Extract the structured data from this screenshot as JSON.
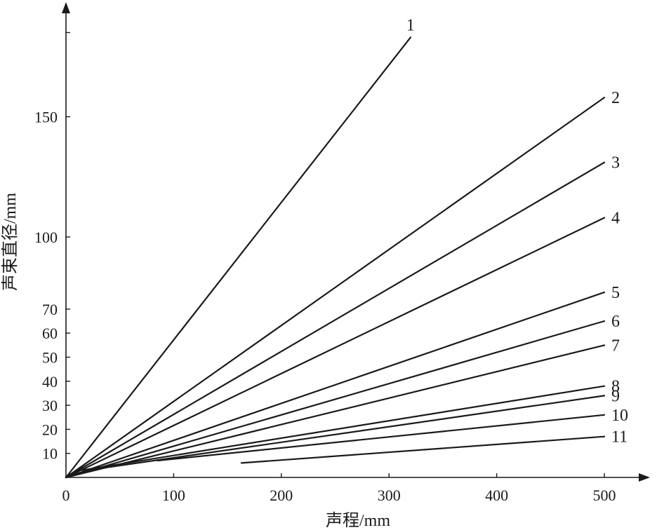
{
  "chart_data": {
    "type": "line",
    "xlabel": "声程/mm",
    "ylabel": "声束直径/mm",
    "xlim": [
      0,
      500
    ],
    "ylim": [
      0,
      185
    ],
    "x_ticks": [
      0,
      100,
      200,
      300,
      400,
      500
    ],
    "y_ticks": [
      10,
      20,
      30,
      40,
      50,
      60,
      70,
      100,
      150
    ],
    "grid": false,
    "series": [
      {
        "name": "1",
        "x": [
          0,
          320
        ],
        "y": [
          0,
          183
        ]
      },
      {
        "name": "2",
        "x": [
          0,
          500
        ],
        "y": [
          0,
          158
        ]
      },
      {
        "name": "3",
        "x": [
          0,
          500
        ],
        "y": [
          0,
          131
        ]
      },
      {
        "name": "4",
        "x": [
          0,
          500
        ],
        "y": [
          0,
          108
        ]
      },
      {
        "name": "5",
        "x": [
          0,
          500
        ],
        "y": [
          0,
          77
        ]
      },
      {
        "name": "6",
        "x": [
          0,
          500
        ],
        "y": [
          0,
          65
        ]
      },
      {
        "name": "7",
        "x": [
          0,
          500
        ],
        "y": [
          0,
          55
        ]
      },
      {
        "name": "8",
        "x": [
          15,
          500
        ],
        "y": [
          3,
          38
        ]
      },
      {
        "name": "9",
        "x": [
          20,
          500
        ],
        "y": [
          3,
          34
        ]
      },
      {
        "name": "10",
        "x": [
          85,
          500
        ],
        "y": [
          7,
          26
        ]
      },
      {
        "name": "11",
        "x": [
          163,
          500
        ],
        "y": [
          6,
          17
        ]
      }
    ]
  }
}
